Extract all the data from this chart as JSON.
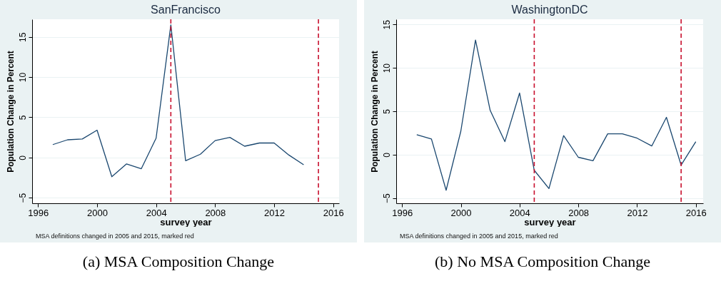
{
  "chart_data": [
    {
      "type": "line",
      "title": "SanFrancisco",
      "xlabel": "survey year",
      "ylabel": "Population Change in Percent",
      "x": [
        1997,
        1998,
        1999,
        2000,
        2001,
        2002,
        2003,
        2004,
        2005,
        2006,
        2007,
        2008,
        2009,
        2010,
        2011,
        2012,
        2013,
        2014
      ],
      "series": [
        {
          "color": "#1a476f",
          "values": [
            1.6,
            2.2,
            2.3,
            3.4,
            -2.4,
            -0.8,
            -1.4,
            2.4,
            16.5,
            -0.4,
            0.4,
            2.1,
            2.5,
            1.4,
            1.8,
            1.8,
            0.3,
            -0.9
          ]
        }
      ],
      "xlim": [
        1995.6,
        2016.4
      ],
      "xticks": [
        1996,
        2000,
        2004,
        2008,
        2012,
        2016
      ],
      "ylim": [
        -5.7,
        17.2
      ],
      "yticks": [
        -5,
        0,
        5,
        10,
        15
      ],
      "grid": "y",
      "ref_lines": [
        {
          "axis": "x",
          "value": 2005,
          "color": "#c8102e",
          "line_style": "dashed"
        },
        {
          "axis": "x",
          "value": 2015,
          "color": "#c8102e",
          "line_style": "dashed"
        }
      ],
      "annotations": [
        "MSA definitions changed in 2005 and 2015, marked red",
        "(a) MSA Composition Change"
      ]
    },
    {
      "type": "line",
      "title": "WashingtonDC",
      "xlabel": "survey year",
      "ylabel": "Population Change in Percent",
      "x": [
        1997,
        1998,
        1999,
        2000,
        2001,
        2002,
        2003,
        2004,
        2005,
        2006,
        2007,
        2008,
        2009,
        2010,
        2011,
        2012,
        2013,
        2014,
        2015,
        2016
      ],
      "series": [
        {
          "color": "#1a476f",
          "values": [
            2.3,
            1.8,
            -4.1,
            2.7,
            13.2,
            5.1,
            1.5,
            7.1,
            -1.8,
            -3.9,
            2.2,
            -0.3,
            -0.7,
            2.4,
            2.4,
            1.9,
            1.0,
            4.3,
            -1.2,
            1.5
          ]
        }
      ],
      "xlim": [
        1995.6,
        2016.5
      ],
      "xticks": [
        1996,
        2000,
        2004,
        2008,
        2012,
        2016
      ],
      "ylim": [
        -5.6,
        15.6
      ],
      "yticks": [
        -5,
        0,
        5,
        10,
        15
      ],
      "grid": "y",
      "ref_lines": [
        {
          "axis": "x",
          "value": 2005,
          "color": "#c8102e",
          "line_style": "dashed"
        },
        {
          "axis": "x",
          "value": 2015,
          "color": "#c8102e",
          "line_style": "dashed"
        }
      ],
      "annotations": [
        "MSA definitions changed in 2005 and 2015, marked red",
        "(b) No MSA Composition Change"
      ]
    }
  ]
}
